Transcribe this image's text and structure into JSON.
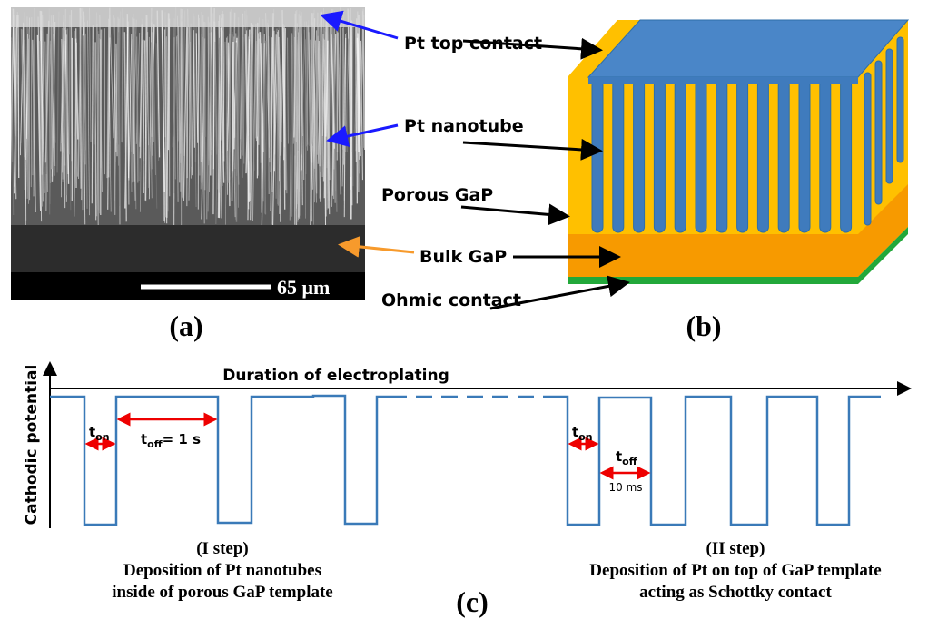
{
  "panel_a": {
    "label": "(a)",
    "scale_bar": "65 μm",
    "annotations": [
      "Pt top contact",
      "Pt nanotube",
      "Bulk GaP"
    ]
  },
  "panel_b": {
    "label": "(b)",
    "annotations": [
      "Porous GaP",
      "Ohmic contact"
    ]
  },
  "panel_c": {
    "label": "(c)",
    "y_axis": "Cathodic potential",
    "x_axis": "Duration of electroplating",
    "step_1": {
      "title": "(I step)",
      "lines": [
        "Deposition of Pt nanotubes",
        "inside of porous GaP template"
      ],
      "t_on": {
        "symbol": "t",
        "subscript": "on"
      },
      "t_off": {
        "symbol": "t",
        "subscript": "off",
        "value": "= 1 s"
      }
    },
    "step_2": {
      "title": "(II step)",
      "lines": [
        "Deposition of Pt on top of GaP template",
        "acting as Schottky contact"
      ],
      "t_on": {
        "symbol": "t",
        "subscript": "on"
      },
      "t_off": {
        "symbol": "t",
        "subscript": "off",
        "value": "10 ms"
      }
    }
  }
}
